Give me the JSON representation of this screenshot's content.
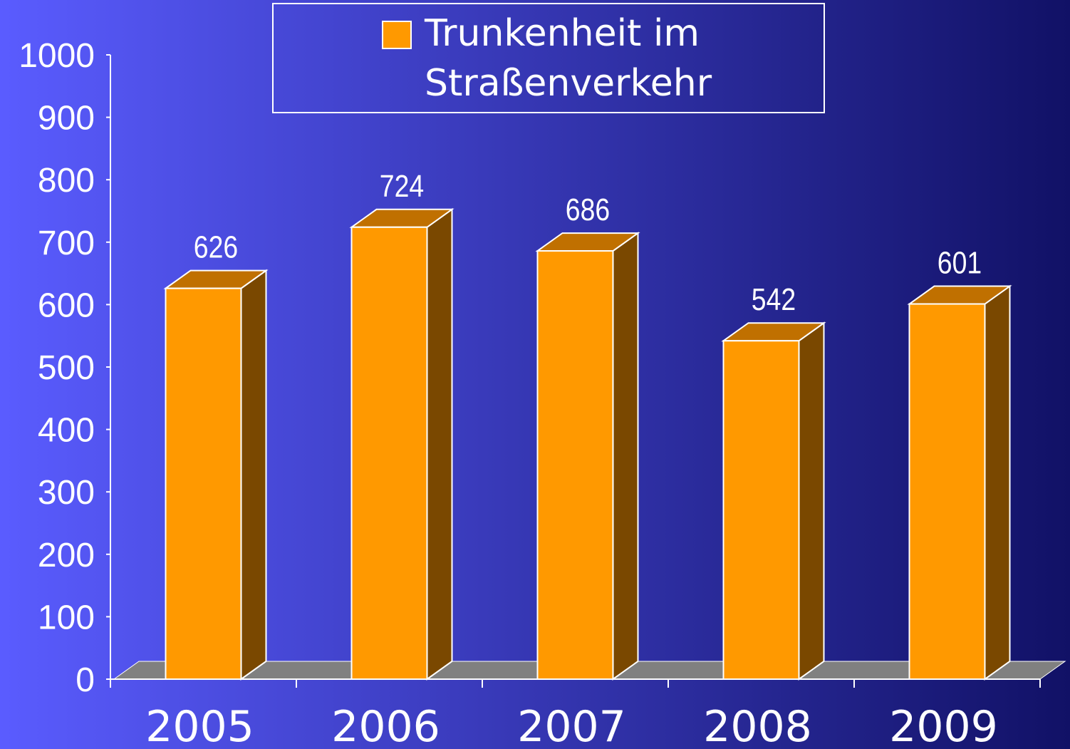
{
  "chart_data": {
    "type": "bar3d",
    "categories": [
      "2005",
      "2006",
      "2007",
      "2008",
      "2009"
    ],
    "series": [
      {
        "name": "Trunkenheit im Straßenverkehr",
        "color": "#ff9900",
        "values": [
          626,
          724,
          686,
          542,
          601
        ]
      }
    ],
    "ylim": [
      0,
      1000
    ],
    "yticks": [
      0,
      100,
      200,
      300,
      400,
      500,
      600,
      700,
      800,
      900,
      1000
    ],
    "legend": "top"
  }
}
